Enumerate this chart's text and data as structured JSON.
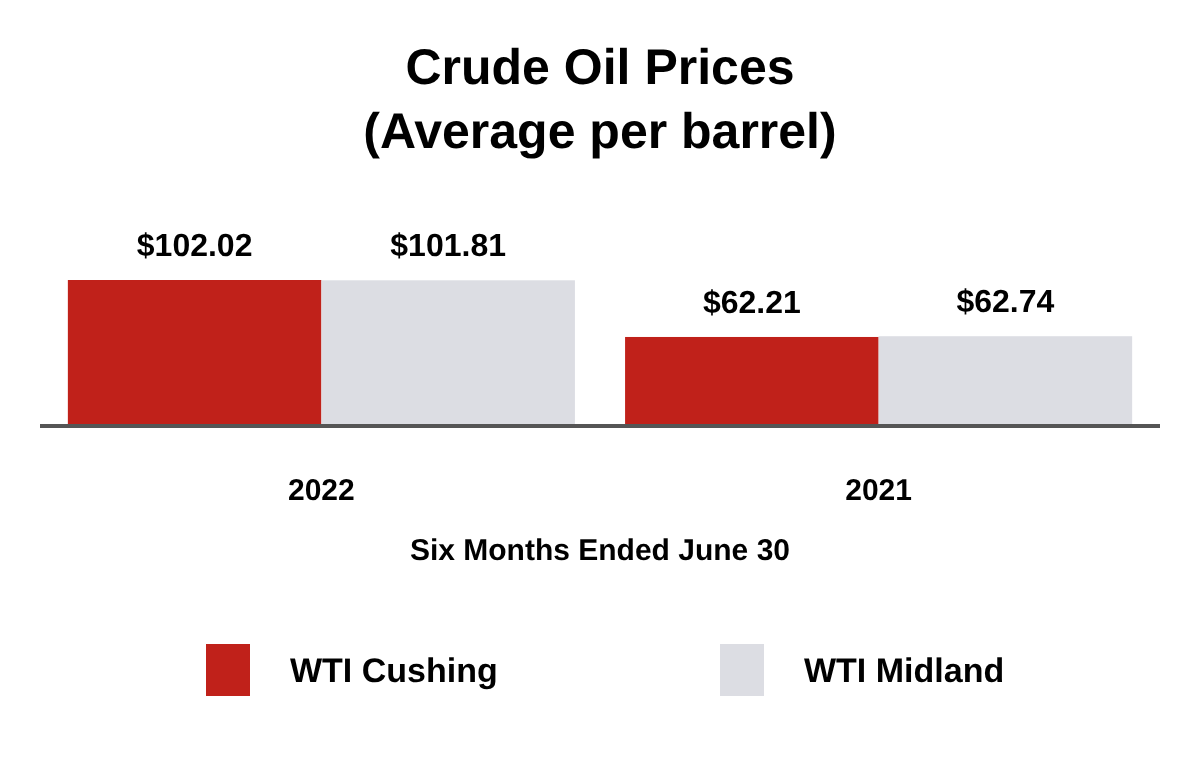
{
  "chart_data": {
    "type": "bar",
    "title": "Crude Oil Prices\n(Average per barrel)",
    "xlabel": "Six Months Ended June 30",
    "categories": [
      "2022",
      "2021"
    ],
    "series": [
      {
        "name": "WTI Cushing",
        "color": "#c0211a",
        "values": [
          102.02,
          62.21
        ],
        "value_labels": [
          "$102.02",
          "$62.21"
        ]
      },
      {
        "name": "WTI Midland",
        "color": "#dcdde3",
        "values": [
          101.81,
          62.74
        ],
        "value_labels": [
          "$101.81",
          "$62.74"
        ]
      }
    ],
    "legend": "bottom"
  }
}
